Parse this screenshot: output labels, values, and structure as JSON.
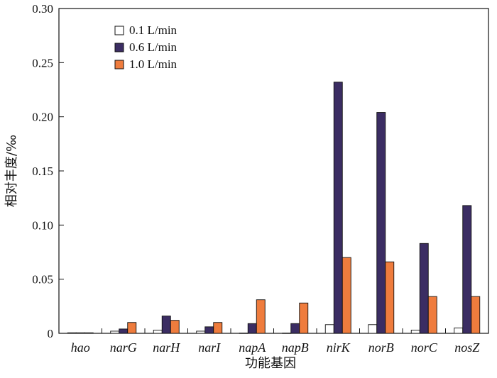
{
  "chart_data": {
    "type": "bar",
    "title": "",
    "xlabel": "功能基因",
    "ylabel": "相对丰度/‰",
    "ylim": [
      0,
      0.3
    ],
    "yticks": [
      "0",
      "0.05",
      "0.10",
      "0.15",
      "0.20",
      "0.25",
      "0.30"
    ],
    "categories": [
      "hao",
      "narG",
      "narH",
      "narI",
      "napA",
      "napB",
      "nirK",
      "norB",
      "norC",
      "nosZ"
    ],
    "series": [
      {
        "name": "0.1 L/min",
        "color": "#ffffff",
        "values": [
          0.0005,
          0.002,
          0.003,
          0.002,
          0.0002,
          0.0002,
          0.008,
          0.008,
          0.003,
          0.005
        ]
      },
      {
        "name": "0.6 L/min",
        "color": "#3b2d63",
        "values": [
          0.0005,
          0.004,
          0.016,
          0.006,
          0.009,
          0.009,
          0.232,
          0.204,
          0.083,
          0.118
        ]
      },
      {
        "name": "1.0 L/min",
        "color": "#ef7c3d",
        "values": [
          0.0005,
          0.01,
          0.012,
          0.01,
          0.031,
          0.028,
          0.07,
          0.066,
          0.034,
          0.034
        ]
      }
    ],
    "legend_position": "top-left",
    "grid": false
  }
}
